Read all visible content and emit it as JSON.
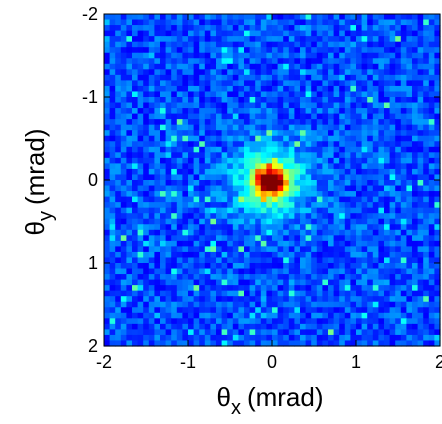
{
  "chart_data": {
    "type": "heatmap",
    "title": "",
    "xlabel": {
      "symbol": "θ",
      "subscript": "x",
      "unit": "(mrad)"
    },
    "ylabel": {
      "symbol": "θ",
      "subscript": "y",
      "unit": "(mrad)"
    },
    "xlim": [
      -2,
      2
    ],
    "ylim": [
      -2,
      2
    ],
    "y_direction": "increasing-downward",
    "x_ticks": [
      "-2",
      "-1",
      "0",
      "1",
      "2"
    ],
    "y_ticks": [
      "-2",
      "-1",
      "0",
      "1",
      "2"
    ],
    "grid": false,
    "colorbar": false,
    "colormap": "jet",
    "bins": 60,
    "background_level": 0.2,
    "noise_amplitude": 0.08,
    "peak": {
      "x": -0.02,
      "y": 0.02,
      "sigma_x": 0.12,
      "sigma_y": 0.1,
      "amplitude": 0.85,
      "halo_sigma": 0.3,
      "halo_amplitude": 0.3
    }
  },
  "colors": {
    "background": "#ffffff",
    "axis": "#000000"
  }
}
